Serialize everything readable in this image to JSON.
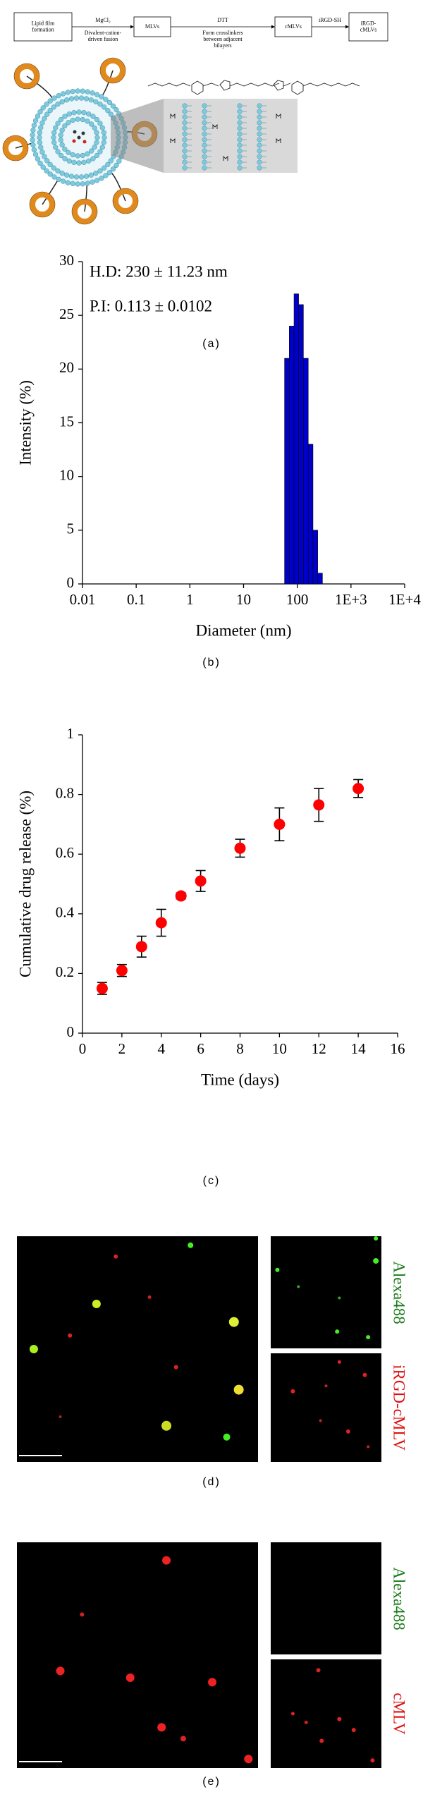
{
  "schematic": {
    "step1": [
      "Lipid film",
      "formation"
    ],
    "arrow1_top": "MgCl₂",
    "arrow1_bottom": [
      "Divalent-cation-",
      "driven fusion"
    ],
    "step2": "MLVs",
    "arrow2_top": "DTT",
    "arrow2_bottom": [
      "Form crosslinkers",
      "between adjacent",
      "bilayers"
    ],
    "step3": "cMLVs",
    "arrow3_top": "iRGD-SH",
    "step4": [
      "iRGD-",
      "cMLVs"
    ]
  },
  "panel_labels": [
    "(a)",
    "(b)",
    "(c)",
    "(d)",
    "(e)"
  ],
  "chart_data": [
    {
      "type": "histogram",
      "x_label": "Diameter (nm)",
      "y_label": "Intensity (%)",
      "annotations": [
        "H.D: 230 ± 11.23 nm",
        "P.I: 0.113 ± 0.0102"
      ],
      "bins": [
        58,
        71,
        87,
        106,
        130,
        160,
        196,
        240,
        294
      ],
      "values": [
        21,
        24,
        27,
        26,
        21,
        13,
        5,
        1
      ],
      "color": "#0000cc",
      "log_x": true,
      "xlim": [
        0.01,
        10000
      ],
      "xticks": [
        0.01,
        0.1,
        1,
        10,
        100,
        {
          "value": 1000,
          "label": "1E+3"
        },
        {
          "value": 10000,
          "label": "1E+4"
        }
      ],
      "ylim": [
        0,
        30
      ],
      "yticks": [
        0,
        5,
        10,
        15,
        20,
        25,
        30
      ]
    },
    {
      "type": "scatter",
      "x_label": "Time (days)",
      "y_label": "Cumulative drug release (%)",
      "x": [
        1,
        2,
        3,
        4,
        5,
        6,
        8,
        10,
        12,
        14
      ],
      "values": [
        0.15,
        0.21,
        0.29,
        0.37,
        0.46,
        0.51,
        0.62,
        0.7,
        0.765,
        0.82
      ],
      "errors": [
        0.02,
        0.02,
        0.035,
        0.045,
        0.01,
        0.035,
        0.03,
        0.055,
        0.055,
        0.03
      ],
      "color": "#ff0000",
      "xlim": [
        0,
        16
      ],
      "xticks": [
        0,
        2,
        4,
        6,
        8,
        10,
        12,
        14,
        16
      ],
      "ylim": [
        0,
        1
      ],
      "yticks": [
        0,
        0.2,
        0.4,
        0.6,
        0.8,
        1
      ]
    }
  ],
  "micrographs": [
    {
      "labels": [
        "Alexa488",
        "iRGD-cMLV"
      ]
    },
    {
      "labels": [
        "Alexa488",
        "cMLV"
      ]
    }
  ]
}
